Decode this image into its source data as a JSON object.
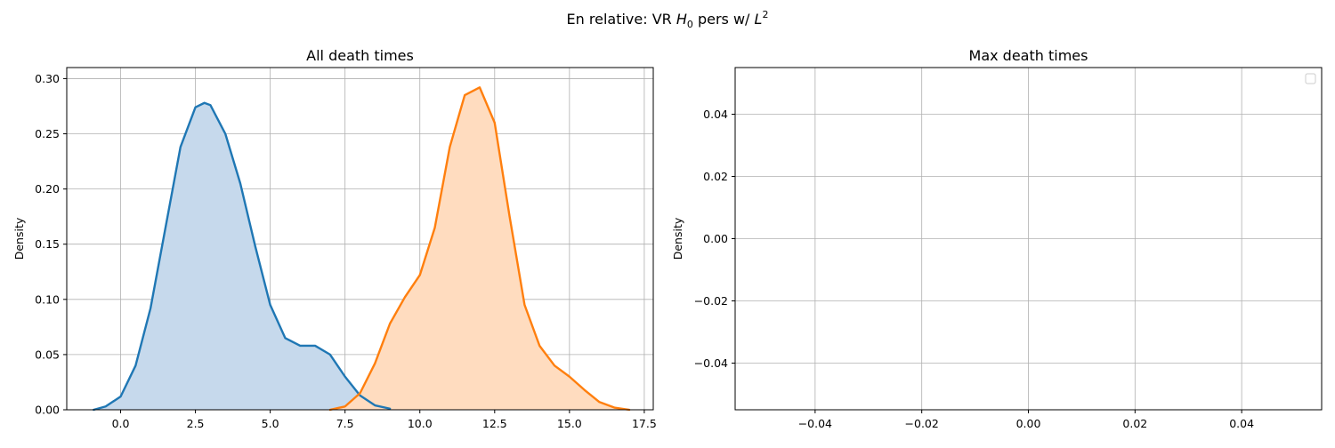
{
  "figure": {
    "suptitle_prefix": "En relative: VR ",
    "suptitle_h": "H",
    "suptitle_h_sub": "0",
    "suptitle_mid": " pers w/ ",
    "suptitle_l": "L",
    "suptitle_l_sup": "2"
  },
  "chart_data": [
    {
      "type": "area",
      "title": "All death times",
      "xlabel": "",
      "ylabel": "Density",
      "xlim": [
        -1.8,
        17.8
      ],
      "ylim": [
        0,
        0.31
      ],
      "xticks": [
        0.0,
        2.5,
        5.0,
        7.5,
        10.0,
        12.5,
        15.0,
        17.5
      ],
      "xtick_labels": [
        "0.0",
        "2.5",
        "5.0",
        "7.5",
        "10.0",
        "12.5",
        "15.0",
        "17.5"
      ],
      "yticks": [
        0.0,
        0.05,
        0.1,
        0.15,
        0.2,
        0.25,
        0.3
      ],
      "ytick_labels": [
        "0.00",
        "0.05",
        "0.10",
        "0.15",
        "0.20",
        "0.25",
        "0.30"
      ],
      "grid": true,
      "series": [
        {
          "color": "#1f77b4",
          "fill": "#c6d9ec",
          "x": [
            -0.9,
            -0.5,
            0.0,
            0.5,
            1.0,
            1.5,
            2.0,
            2.5,
            2.8,
            3.0,
            3.5,
            4.0,
            4.5,
            5.0,
            5.5,
            6.0,
            6.5,
            7.0,
            7.5,
            8.0,
            8.5,
            9.0
          ],
          "y": [
            0.0,
            0.003,
            0.012,
            0.04,
            0.092,
            0.165,
            0.238,
            0.274,
            0.278,
            0.276,
            0.25,
            0.205,
            0.148,
            0.095,
            0.065,
            0.058,
            0.058,
            0.05,
            0.03,
            0.013,
            0.004,
            0.001
          ]
        },
        {
          "color": "#ff7f0e",
          "fill": "#ffdcbf",
          "x": [
            7.0,
            7.5,
            8.0,
            8.5,
            9.0,
            9.5,
            10.0,
            10.5,
            11.0,
            11.5,
            12.0,
            12.5,
            13.0,
            13.5,
            14.0,
            14.5,
            15.0,
            15.5,
            16.0,
            16.5,
            17.0
          ],
          "y": [
            0.0,
            0.003,
            0.015,
            0.042,
            0.078,
            0.102,
            0.122,
            0.165,
            0.238,
            0.285,
            0.292,
            0.26,
            0.175,
            0.095,
            0.058,
            0.04,
            0.03,
            0.018,
            0.007,
            0.002,
            0.0
          ]
        }
      ]
    },
    {
      "type": "line",
      "title": "Max death times",
      "xlabel": "",
      "ylabel": "Density",
      "xlim": [
        -0.055,
        0.055
      ],
      "ylim": [
        -0.055,
        0.055
      ],
      "xticks": [
        -0.04,
        -0.02,
        0.0,
        0.02,
        0.04
      ],
      "xtick_labels": [
        "−0.04",
        "−0.02",
        "0.00",
        "0.02",
        "0.04"
      ],
      "yticks": [
        -0.04,
        -0.02,
        0.0,
        0.02,
        0.04
      ],
      "ytick_labels": [
        "−0.04",
        "−0.02",
        "0.00",
        "0.02",
        "0.04"
      ],
      "grid": true,
      "legend": "top-right",
      "series": []
    }
  ]
}
